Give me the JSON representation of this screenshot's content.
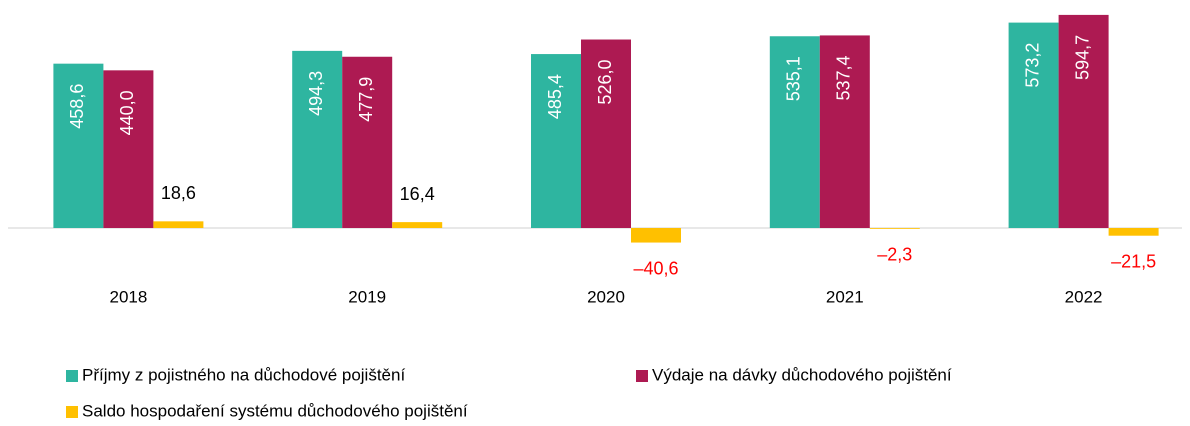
{
  "chart_data": {
    "type": "bar",
    "categories": [
      "2018",
      "2019",
      "2020",
      "2021",
      "2022"
    ],
    "series": [
      {
        "name": "Příjmy z pojistného na důchodové pojištění",
        "color": "#2eb5a0",
        "values": [
          458.6,
          494.3,
          485.4,
          535.1,
          573.2
        ],
        "value_labels": [
          "458,6",
          "494,3",
          "485,4",
          "535,1",
          "573,2"
        ]
      },
      {
        "name": "Výdaje na dávky důchodového pojištění",
        "color": "#ad1a52",
        "values": [
          440.0,
          477.9,
          526.0,
          537.4,
          594.7
        ],
        "value_labels": [
          "440,0",
          "477,9",
          "526,0",
          "537,4",
          "594,7"
        ]
      },
      {
        "name": "Saldo hospodaření systému důchodového pojištění",
        "color": "#ffc000",
        "values": [
          18.6,
          16.4,
          -40.6,
          -2.3,
          -21.5
        ],
        "value_labels": [
          "18,6",
          "16,4",
          "–40,6",
          "–2,3",
          "–21,5"
        ]
      }
    ],
    "ylim": [
      -60,
      600
    ],
    "negative_label_color": "#ff0000"
  }
}
